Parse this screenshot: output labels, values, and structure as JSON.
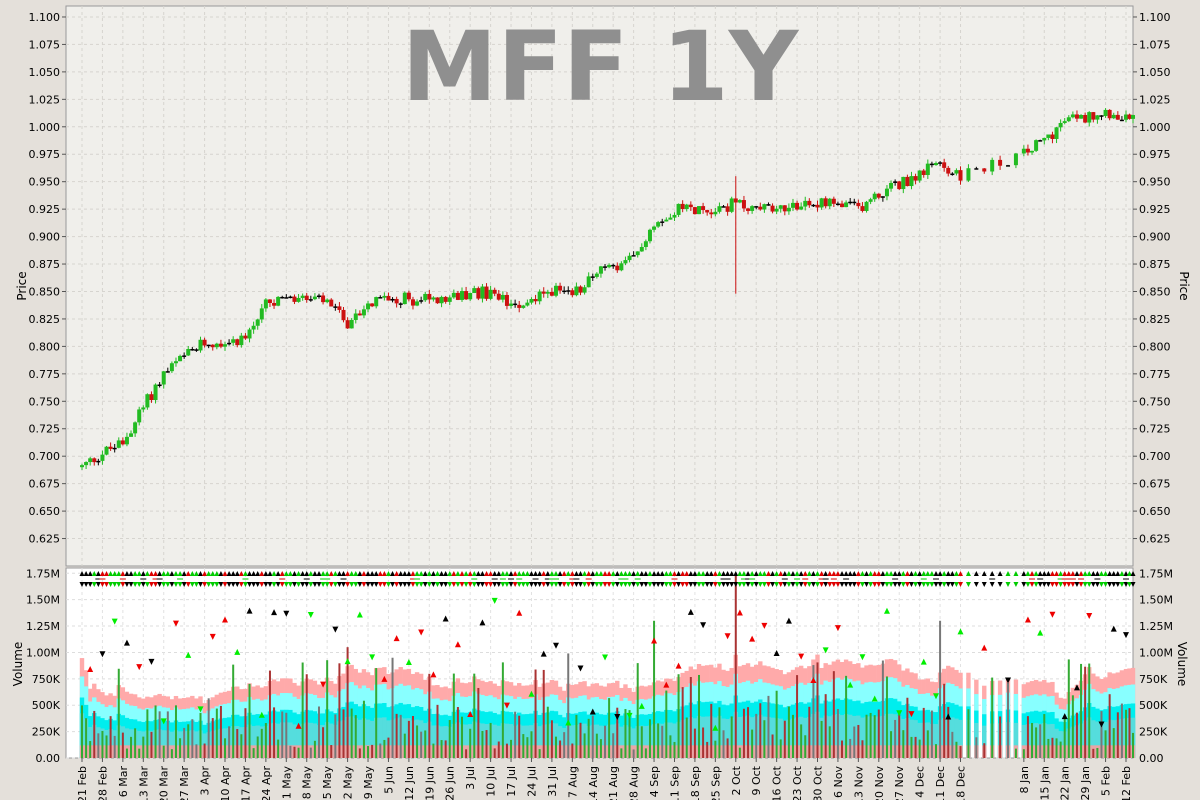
{
  "chart_data": [
    {
      "type": "candlestick",
      "title": "MFF 1Y",
      "ylabel": "Price",
      "ylim": [
        0.6,
        1.11
      ],
      "yticks": [
        "1.100",
        "1.075",
        "1.050",
        "1.025",
        "1.000",
        "0.975",
        "0.950",
        "0.925",
        "0.900",
        "0.875",
        "0.850",
        "0.825",
        "0.800",
        "0.775",
        "0.750",
        "0.725",
        "0.700",
        "0.675",
        "0.650",
        "0.625"
      ],
      "grid": true,
      "colors": {
        "up": "#22bb22",
        "down": "#cc1111",
        "flat": "#000000",
        "background": "#f0efeb",
        "title": "#8f8f8f"
      },
      "anchors": [
        {
          "x": "21 Feb",
          "close": 0.69
        },
        {
          "x": "28 Feb",
          "close": 0.703
        },
        {
          "x": "6 Mar",
          "close": 0.712
        },
        {
          "x": "13 Mar",
          "close": 0.745
        },
        {
          "x": "20 Mar",
          "close": 0.775
        },
        {
          "x": "27 Mar",
          "close": 0.79
        },
        {
          "x": "3 Apr",
          "close": 0.803
        },
        {
          "x": "10 Apr",
          "close": 0.805
        },
        {
          "x": "17 Apr",
          "close": 0.808
        },
        {
          "x": "24 Apr",
          "close": 0.838
        },
        {
          "x": "1 May",
          "close": 0.842
        },
        {
          "x": "8 May",
          "close": 0.843
        },
        {
          "x": "15 May",
          "close": 0.84
        },
        {
          "x": "22 May",
          "close": 0.822
        },
        {
          "x": "29 May",
          "close": 0.838
        },
        {
          "x": "5 Jun",
          "close": 0.845
        },
        {
          "x": "12 Jun",
          "close": 0.843
        },
        {
          "x": "19 Jun",
          "close": 0.842
        },
        {
          "x": "26 Jun",
          "close": 0.842
        },
        {
          "x": "3 Jul",
          "close": 0.85
        },
        {
          "x": "10 Jul",
          "close": 0.848
        },
        {
          "x": "17 Jul",
          "close": 0.84
        },
        {
          "x": "24 Jul",
          "close": 0.842
        },
        {
          "x": "31 Jul",
          "close": 0.852
        },
        {
          "x": "7 Aug",
          "close": 0.845
        },
        {
          "x": "14 Aug",
          "close": 0.868
        },
        {
          "x": "21 Aug",
          "close": 0.87
        },
        {
          "x": "28 Aug",
          "close": 0.88
        },
        {
          "x": "4 Sep",
          "close": 0.913
        },
        {
          "x": "11 Sep",
          "close": 0.925
        },
        {
          "x": "18 Sep",
          "close": 0.925
        },
        {
          "x": "25 Sep",
          "close": 0.925
        },
        {
          "x": "2 Oct",
          "close": 0.93
        },
        {
          "x": "9 Oct",
          "close": 0.925
        },
        {
          "x": "16 Oct",
          "close": 0.928
        },
        {
          "x": "23 Oct",
          "close": 0.93
        },
        {
          "x": "30 Oct",
          "close": 0.93
        },
        {
          "x": "6 Nov",
          "close": 0.928
        },
        {
          "x": "13 Nov",
          "close": 0.926
        },
        {
          "x": "20 Nov",
          "close": 0.938
        },
        {
          "x": "27 Nov",
          "close": 0.948
        },
        {
          "x": "4 Dec",
          "close": 0.958
        },
        {
          "x": "11 Dec",
          "close": 0.965
        },
        {
          "x": "18 Dec",
          "close": 0.955
        },
        {
          "x": "8 Jan",
          "close": 0.975
        },
        {
          "x": "15 Jan",
          "close": 0.988
        },
        {
          "x": "22 Jan",
          "close": 1.005
        },
        {
          "x": "29 Jan",
          "close": 1.008
        },
        {
          "x": "5 Feb",
          "close": 1.015
        },
        {
          "x": "12 Feb",
          "close": 1.008
        }
      ],
      "notable_candles": [
        {
          "x": "2 Oct",
          "low": 0.848,
          "high": 0.955,
          "note": "long lower wick"
        }
      ]
    },
    {
      "type": "bar",
      "ylabel": "Volume",
      "ylim": [
        0,
        1800000
      ],
      "yticks": [
        "1.75M",
        "1.50M",
        "1.25M",
        "1.00M",
        "750K",
        "500K",
        "250K",
        "0.00"
      ],
      "xticks": [
        "21 Feb",
        "28 Feb",
        "6 Mar",
        "13 Mar",
        "20 Mar",
        "27 Mar",
        "3 Apr",
        "10 Apr",
        "17 Apr",
        "24 Apr",
        "1 May",
        "8 May",
        "15 May",
        "22 May",
        "29 May",
        "5 Jun",
        "12 Jun",
        "19 Jun",
        "26 Jun",
        "3 Jul",
        "10 Jul",
        "17 Jul",
        "24 Jul",
        "31 Jul",
        "7 Aug",
        "14 Aug",
        "21 Aug",
        "28 Aug",
        "4 Sep",
        "11 Sep",
        "18 Sep",
        "25 Sep",
        "2 Oct",
        "9 Oct",
        "16 Oct",
        "23 Oct",
        "30 Oct",
        "6 Nov",
        "13 Nov",
        "20 Nov",
        "27 Nov",
        "4 Dec",
        "11 Dec",
        "18 Dec",
        "8 Jan",
        "15 Jan",
        "22 Jan",
        "29 Jan",
        "5 Feb",
        "12 Feb"
      ],
      "notable_bars": [
        {
          "x": "2 Oct",
          "value": 1750000
        },
        {
          "x": "11 Dec",
          "value": 1300000
        },
        {
          "x": "4 Sep",
          "value": 1300000
        },
        {
          "x": "22 May",
          "value": 1050000
        }
      ],
      "bands": [
        "pink",
        "light cyan",
        "cyan"
      ],
      "colors": {
        "bar": "#777777",
        "band_outer": "#ffaaaa",
        "band_mid": "#88ffff",
        "band_inner": "#00eeee",
        "background": "#ffffff"
      }
    }
  ]
}
